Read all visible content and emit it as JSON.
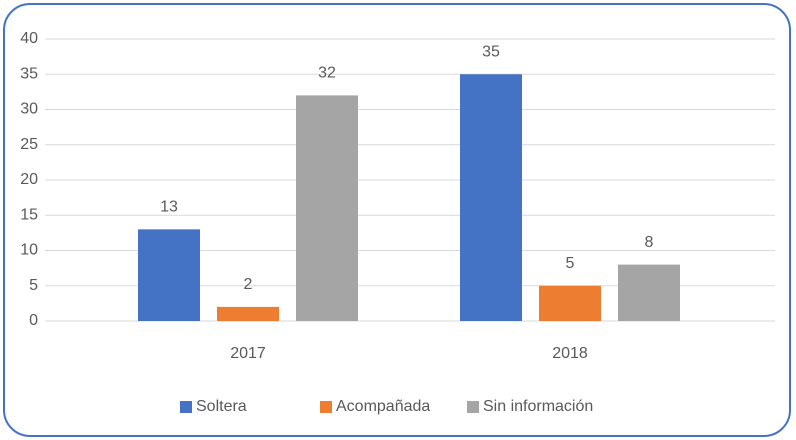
{
  "chart_data": {
    "type": "bar",
    "categories": [
      "2017",
      "2018"
    ],
    "series": [
      {
        "name": "Soltera",
        "color": "#4472c4",
        "values": [
          13,
          35
        ]
      },
      {
        "name": "Acompañada",
        "color": "#ed7d31",
        "values": [
          2,
          5
        ]
      },
      {
        "name": "Sin información",
        "color": "#a5a5a5",
        "values": [
          32,
          8
        ]
      }
    ],
    "ylim": [
      0,
      40
    ],
    "yticks": [
      0,
      5,
      10,
      15,
      20,
      25,
      30,
      35,
      40
    ],
    "grid": true,
    "legend": "bottom"
  }
}
